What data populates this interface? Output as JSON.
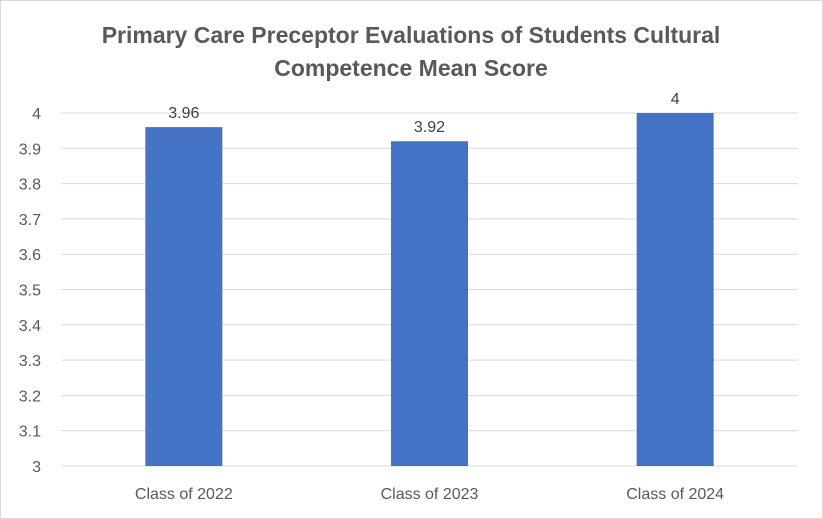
{
  "chart_data": {
    "type": "bar",
    "title": "Primary Care Preceptor Evaluations of Students Cultural Competence Mean Score",
    "xlabel": "",
    "ylabel": "",
    "categories": [
      "Class of 2022",
      "Class of 2023",
      "Class of 2024"
    ],
    "series": [
      {
        "values": [
          3.96,
          3.92,
          4
        ],
        "data_labels": [
          "3.96",
          "3.92",
          "4"
        ],
        "color": "#4472c4"
      }
    ],
    "ylim": [
      3,
      4
    ],
    "yticks": [
      "3",
      "3.1",
      "3.2",
      "3.3",
      "3.4",
      "3.5",
      "3.6",
      "3.7",
      "3.8",
      "3.9",
      "4"
    ],
    "grid": true,
    "legend": "none"
  },
  "colors": {
    "bar": "#4472c4",
    "gridline": "#d9d9d9",
    "text": "#595959"
  }
}
